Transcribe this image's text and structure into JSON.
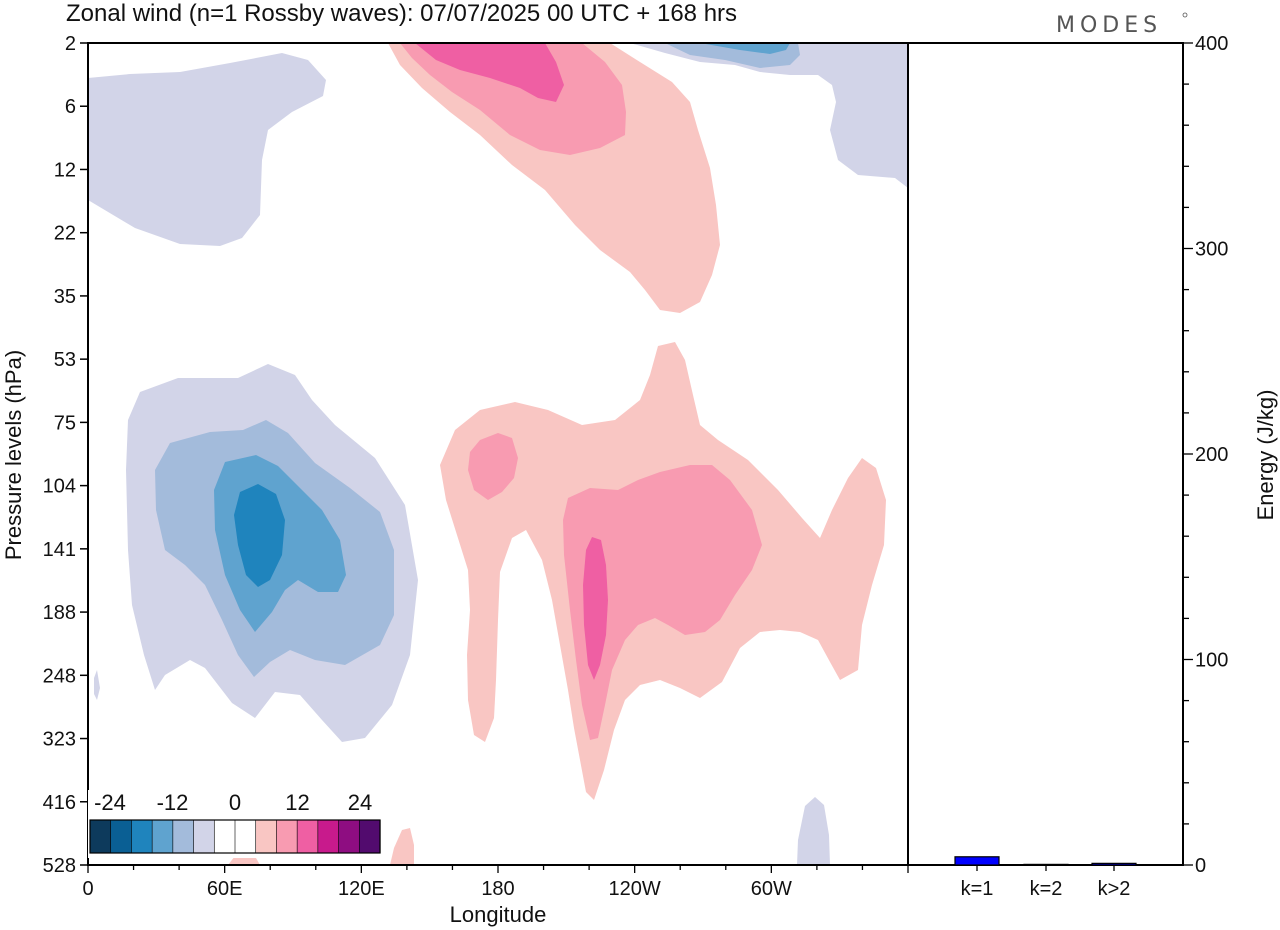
{
  "header": {
    "title": "Zonal wind (n=1 Rossby waves):  07/07/2025  00 UTC  + 168 hrs",
    "brand": "MODES"
  },
  "colors": {
    "negative": [
      "#0d3a5c",
      "#0a5f94",
      "#1f84bd",
      "#5fa3cf",
      "#a3bbdb",
      "#d2d4e8"
    ],
    "neutral": "#ffffff",
    "positive": [
      "#f9c6c3",
      "#f89bb1",
      "#ef5fa3",
      "#c81a8c",
      "#8e0d81",
      "#520b6e"
    ],
    "energy_bar": "#0000ff"
  },
  "chart_data": [
    {
      "type": "heatmap",
      "title": "Zonal wind (n=1 Rossby waves):  07/07/2025  00 UTC  + 168 hrs",
      "xlabel": "Longitude",
      "ylabel": "Pressure levels (hPa)",
      "x_ticks": [
        "0",
        "60E",
        "120E",
        "180",
        "120W",
        "60W"
      ],
      "y_ticks": [
        "2",
        "6",
        "12",
        "22",
        "35",
        "53",
        "75",
        "104",
        "141",
        "188",
        "248",
        "323",
        "416",
        "528"
      ],
      "colorbar_labels": [
        "-24",
        "-12",
        "0",
        "12",
        "24"
      ],
      "contour_levels": [
        -24,
        -20,
        -16,
        -12,
        -8,
        -4,
        4,
        8,
        12,
        16,
        20,
        24
      ],
      "features": [
        {
          "sign": "negative",
          "min_value": -12,
          "lon": 75,
          "pressure": 141
        },
        {
          "sign": "positive",
          "min_value": 12,
          "lon": 225,
          "pressure": 188
        },
        {
          "sign": "positive",
          "min_value": 12,
          "lon": 195,
          "pressure": 3
        },
        {
          "sign": "negative",
          "min_value": -12,
          "lon": 300,
          "pressure": 2
        }
      ]
    },
    {
      "type": "bar",
      "categories": [
        "k=1",
        "k=2",
        "k>2"
      ],
      "values": [
        4,
        0.3,
        0.8
      ],
      "ylabel": "Energy (J/kg)",
      "ylim": [
        0,
        400
      ],
      "y_ticks": [
        "0",
        "100",
        "200",
        "300",
        "400"
      ]
    }
  ]
}
